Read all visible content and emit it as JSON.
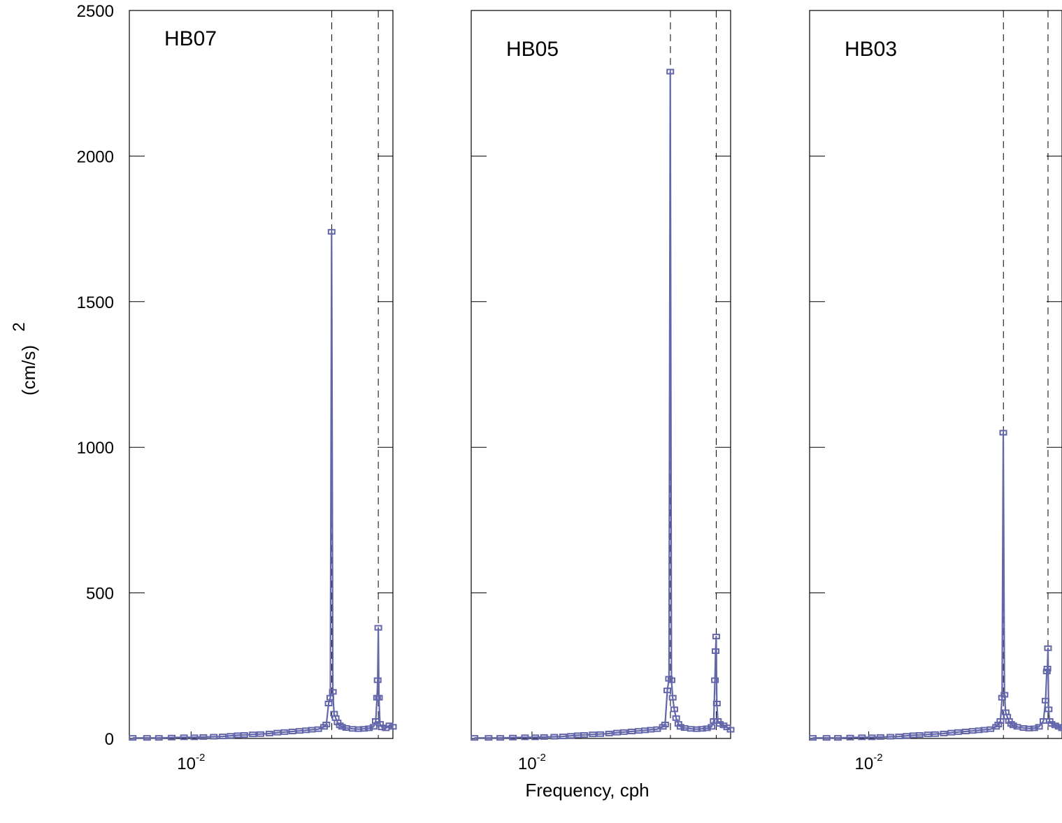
{
  "chart_data": {
    "type": "line",
    "ylabel": "(cm/s)",
    "ylabel_superscript": "2",
    "xlabel": "Frequency, cph",
    "ylim": [
      0,
      2500
    ],
    "yticks": [
      0,
      500,
      1000,
      1500,
      2000,
      2500
    ],
    "y_tick_labels": [
      "0",
      "500",
      "1000",
      "1500",
      "2000",
      "2500"
    ],
    "xscale": "log",
    "xlim": [
      0.004,
      0.2
    ],
    "xtick_value": 0.01,
    "xtick_base": "10",
    "xtick_exponent": "-2",
    "reference_lines": [
      0.0807,
      0.161
    ],
    "grid": false,
    "legend": "none",
    "series_color": "#6366aa",
    "panels": [
      {
        "title": "HB07",
        "points": [
          [
            0.0042,
            2
          ],
          [
            0.0052,
            2
          ],
          [
            0.0062,
            2
          ],
          [
            0.0075,
            3
          ],
          [
            0.009,
            4
          ],
          [
            0.0105,
            4
          ],
          [
            0.012,
            5
          ],
          [
            0.014,
            6
          ],
          [
            0.016,
            7
          ],
          [
            0.018,
            9
          ],
          [
            0.02,
            11
          ],
          [
            0.022,
            12
          ],
          [
            0.025,
            14
          ],
          [
            0.028,
            15
          ],
          [
            0.032,
            17
          ],
          [
            0.036,
            20
          ],
          [
            0.04,
            22
          ],
          [
            0.045,
            24
          ],
          [
            0.05,
            26
          ],
          [
            0.055,
            28
          ],
          [
            0.06,
            30
          ],
          [
            0.066,
            32
          ],
          [
            0.072,
            40
          ],
          [
            0.0745,
            48
          ],
          [
            0.077,
            120
          ],
          [
            0.079,
            140
          ],
          [
            0.0805,
            1740
          ],
          [
            0.082,
            160
          ],
          [
            0.0835,
            85
          ],
          [
            0.0855,
            70
          ],
          [
            0.088,
            55
          ],
          [
            0.091,
            45
          ],
          [
            0.094,
            40
          ],
          [
            0.1,
            36
          ],
          [
            0.11,
            33
          ],
          [
            0.12,
            32
          ],
          [
            0.13,
            33
          ],
          [
            0.14,
            35
          ],
          [
            0.15,
            40
          ],
          [
            0.155,
            60
          ],
          [
            0.158,
            140
          ],
          [
            0.1595,
            200
          ],
          [
            0.161,
            380
          ],
          [
            0.1625,
            140
          ],
          [
            0.165,
            50
          ],
          [
            0.17,
            38
          ],
          [
            0.18,
            35
          ],
          [
            0.19,
            45
          ],
          [
            0.2,
            40
          ]
        ]
      },
      {
        "title": "HB05",
        "points": [
          [
            0.0042,
            2
          ],
          [
            0.0052,
            2
          ],
          [
            0.0062,
            2
          ],
          [
            0.0075,
            3
          ],
          [
            0.009,
            4
          ],
          [
            0.0105,
            4
          ],
          [
            0.012,
            5
          ],
          [
            0.014,
            6
          ],
          [
            0.016,
            7
          ],
          [
            0.018,
            9
          ],
          [
            0.02,
            11
          ],
          [
            0.022,
            12
          ],
          [
            0.025,
            14
          ],
          [
            0.028,
            15
          ],
          [
            0.032,
            17
          ],
          [
            0.036,
            20
          ],
          [
            0.04,
            22
          ],
          [
            0.045,
            24
          ],
          [
            0.05,
            26
          ],
          [
            0.055,
            28
          ],
          [
            0.06,
            30
          ],
          [
            0.066,
            32
          ],
          [
            0.072,
            40
          ],
          [
            0.0745,
            48
          ],
          [
            0.077,
            165
          ],
          [
            0.079,
            205
          ],
          [
            0.0805,
            2290
          ],
          [
            0.082,
            200
          ],
          [
            0.0835,
            140
          ],
          [
            0.0855,
            100
          ],
          [
            0.088,
            70
          ],
          [
            0.091,
            50
          ],
          [
            0.094,
            40
          ],
          [
            0.1,
            36
          ],
          [
            0.11,
            33
          ],
          [
            0.12,
            32
          ],
          [
            0.13,
            33
          ],
          [
            0.14,
            35
          ],
          [
            0.15,
            40
          ],
          [
            0.155,
            60
          ],
          [
            0.158,
            200
          ],
          [
            0.1595,
            300
          ],
          [
            0.161,
            350
          ],
          [
            0.1625,
            120
          ],
          [
            0.165,
            60
          ],
          [
            0.17,
            50
          ],
          [
            0.18,
            45
          ],
          [
            0.19,
            38
          ],
          [
            0.2,
            30
          ]
        ]
      },
      {
        "title": "HB03",
        "points": [
          [
            0.0042,
            2
          ],
          [
            0.0052,
            2
          ],
          [
            0.0062,
            2
          ],
          [
            0.0075,
            3
          ],
          [
            0.009,
            4
          ],
          [
            0.0105,
            4
          ],
          [
            0.012,
            5
          ],
          [
            0.014,
            6
          ],
          [
            0.016,
            7
          ],
          [
            0.018,
            9
          ],
          [
            0.02,
            11
          ],
          [
            0.022,
            12
          ],
          [
            0.025,
            14
          ],
          [
            0.028,
            15
          ],
          [
            0.032,
            17
          ],
          [
            0.036,
            20
          ],
          [
            0.04,
            22
          ],
          [
            0.045,
            24
          ],
          [
            0.05,
            26
          ],
          [
            0.055,
            28
          ],
          [
            0.06,
            30
          ],
          [
            0.066,
            32
          ],
          [
            0.072,
            40
          ],
          [
            0.0745,
            48
          ],
          [
            0.077,
            60
          ],
          [
            0.079,
            140
          ],
          [
            0.0805,
            1050
          ],
          [
            0.082,
            150
          ],
          [
            0.0835,
            90
          ],
          [
            0.0855,
            75
          ],
          [
            0.088,
            60
          ],
          [
            0.091,
            50
          ],
          [
            0.094,
            45
          ],
          [
            0.1,
            40
          ],
          [
            0.11,
            36
          ],
          [
            0.12,
            34
          ],
          [
            0.13,
            35
          ],
          [
            0.14,
            40
          ],
          [
            0.15,
            60
          ],
          [
            0.155,
            130
          ],
          [
            0.158,
            230
          ],
          [
            0.1595,
            240
          ],
          [
            0.161,
            310
          ],
          [
            0.1625,
            100
          ],
          [
            0.165,
            60
          ],
          [
            0.17,
            50
          ],
          [
            0.18,
            45
          ],
          [
            0.19,
            40
          ],
          [
            0.2,
            35
          ]
        ]
      }
    ]
  }
}
